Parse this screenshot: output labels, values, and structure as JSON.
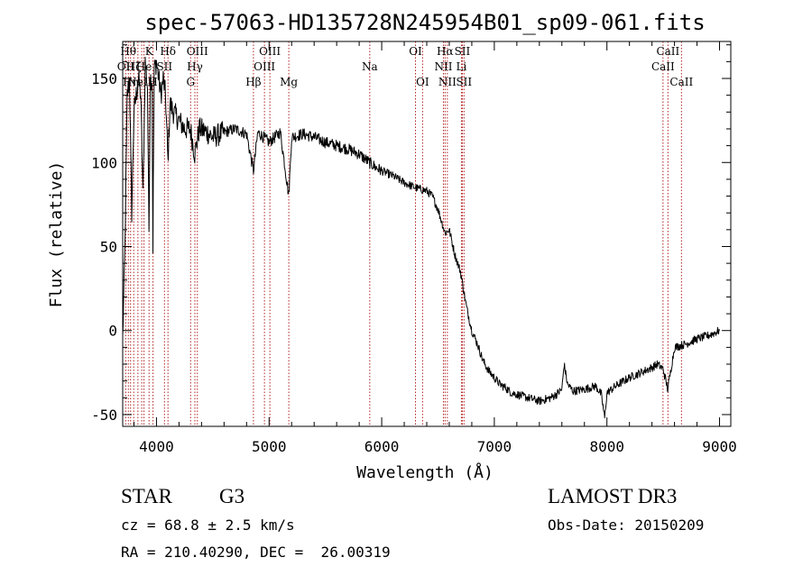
{
  "chart_data": {
    "type": "line",
    "title": "spec-57063-HD135728N245954B01_sp09-061.fits",
    "xlabel": "Wavelength (Å)",
    "ylabel": "Flux (relative)",
    "xlim": [
      3700,
      9100
    ],
    "ylim": [
      -57,
      172
    ],
    "xticks": [
      4000,
      5000,
      6000,
      7000,
      8000,
      9000
    ],
    "yticks": [
      -50,
      0,
      50,
      100,
      150
    ],
    "series": [
      {
        "name": "flux",
        "x": [
          3700,
          3720,
          3740,
          3760,
          3780,
          3800,
          3820,
          3840,
          3860,
          3880,
          3900,
          3920,
          3933,
          3945,
          3960,
          3968,
          3980,
          4000,
          4020,
          4040,
          4060,
          4080,
          4102,
          4120,
          4150,
          4200,
          4250,
          4300,
          4340,
          4380,
          4450,
          4500,
          4600,
          4700,
          4800,
          4861,
          4900,
          5000,
          5100,
          5175,
          5200,
          5300,
          5400,
          5500,
          5600,
          5700,
          5800,
          5890,
          5950,
          6000,
          6100,
          6200,
          6300,
          6400,
          6450,
          6500,
          6563,
          6600,
          6650,
          6700,
          6750,
          6800,
          6850,
          6900,
          6950,
          7000,
          7050,
          7100,
          7150,
          7200,
          7300,
          7400,
          7500,
          7550,
          7600,
          7620,
          7650,
          7700,
          7800,
          7900,
          7950,
          7980,
          8000,
          8100,
          8200,
          8300,
          8400,
          8450,
          8500,
          8540,
          8600,
          8700,
          8800,
          8900,
          9000
        ],
        "y": [
          -5,
          50,
          140,
          150,
          70,
          130,
          140,
          150,
          140,
          80,
          160,
          145,
          60,
          150,
          150,
          50,
          155,
          160,
          150,
          140,
          150,
          140,
          100,
          135,
          130,
          125,
          120,
          120,
          105,
          120,
          118,
          115,
          118,
          120,
          117,
          95,
          118,
          112,
          118,
          80,
          115,
          117,
          115,
          112,
          110,
          108,
          105,
          100,
          97,
          95,
          92,
          88,
          85,
          83,
          80,
          72,
          58,
          60,
          45,
          35,
          15,
          0,
          -8,
          -18,
          -24,
          -28,
          -32,
          -34,
          -37,
          -38,
          -40,
          -42,
          -40,
          -38,
          -35,
          -20,
          -32,
          -36,
          -35,
          -33,
          -38,
          -52,
          -37,
          -32,
          -28,
          -25,
          -22,
          -20,
          -23,
          -35,
          -10,
          -8,
          -5,
          -3,
          0
        ]
      }
    ],
    "lines": [
      {
        "x": 3727,
        "label": "OII",
        "row": 1
      },
      {
        "x": 3750,
        "label": "Hθ",
        "row": 0
      },
      {
        "x": 3770,
        "label": "Hη",
        "row": 2
      },
      {
        "x": 3798,
        "label": "Hζ",
        "row": 1
      },
      {
        "x": 3835,
        "label": "",
        "row": 0
      },
      {
        "x": 3869,
        "label": "NeIII",
        "row": 2
      },
      {
        "x": 3889,
        "label": "He",
        "row": 1
      },
      {
        "x": 3934,
        "label": "K",
        "row": 0
      },
      {
        "x": 3969,
        "label": "H",
        "row": 2
      },
      {
        "x": 4071,
        "label": "SII",
        "row": 1
      },
      {
        "x": 4102,
        "label": "Hδ",
        "row": 0
      },
      {
        "x": 4303,
        "label": "G",
        "row": 2
      },
      {
        "x": 4341,
        "label": "Hγ",
        "row": 1
      },
      {
        "x": 4363,
        "label": "OIII",
        "row": 0
      },
      {
        "x": 4861,
        "label": "Hβ",
        "row": 2
      },
      {
        "x": 4959,
        "label": "OIII",
        "row": 1
      },
      {
        "x": 5007,
        "label": "OIII",
        "row": 0
      },
      {
        "x": 5175,
        "label": "Mg",
        "row": 2
      },
      {
        "x": 5894,
        "label": "Na",
        "row": 1
      },
      {
        "x": 6300,
        "label": "OI",
        "row": 0
      },
      {
        "x": 6363,
        "label": "OI",
        "row": 2
      },
      {
        "x": 6548,
        "label": "NII",
        "row": 1
      },
      {
        "x": 6563,
        "label": "Hα",
        "row": 0
      },
      {
        "x": 6583,
        "label": "NII",
        "row": 2
      },
      {
        "x": 6708,
        "label": "Li",
        "row": 1
      },
      {
        "x": 6716,
        "label": "SII",
        "row": 0
      },
      {
        "x": 6731,
        "label": "SII",
        "row": 2
      },
      {
        "x": 8498,
        "label": "CaII",
        "row": 1
      },
      {
        "x": 8542,
        "label": "CaII",
        "row": 0
      },
      {
        "x": 8662,
        "label": "CaII",
        "row": 2
      }
    ],
    "colors": {
      "spectrum": "#000000",
      "lines": "#b22222",
      "axes": "#000000"
    }
  },
  "info": {
    "object_class": "STAR",
    "subclass": "G3",
    "survey": "LAMOST DR3",
    "cz": "cz = 68.8 ± 2.5 km/s",
    "obs_date": "Obs-Date: 20150209",
    "coords": "RA = 210.40290, DEC =  26.00319"
  }
}
